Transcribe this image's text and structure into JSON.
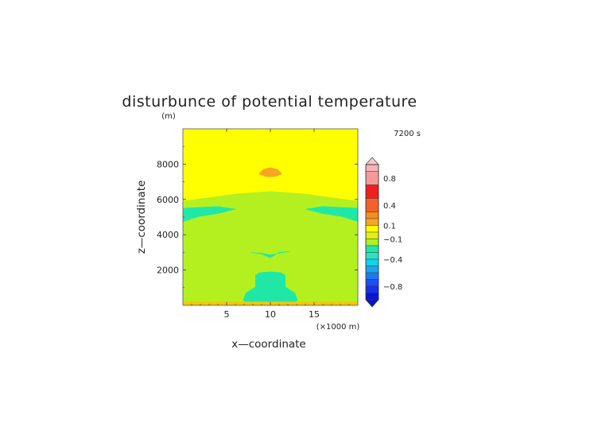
{
  "chart_data": {
    "type": "heatmap",
    "title": "disturbunce of potential temperature",
    "time_label": "7200 s",
    "xlabel": "x—coordinate",
    "ylabel": "z—coordinate",
    "x_unit": "(×1000 m)",
    "y_unit": "(m)",
    "xlim": [
      0,
      20
    ],
    "ylim": [
      0,
      10000
    ],
    "x_ticks": [
      5,
      10,
      15
    ],
    "x_tick_labels": [
      "5",
      "10",
      "15"
    ],
    "y_ticks": [
      2000,
      4000,
      6000,
      8000
    ],
    "y_tick_labels": [
      "2000",
      "4000",
      "6000",
      "8000"
    ],
    "colorbar": {
      "range": [
        -1.0,
        1.0
      ],
      "labels": [
        {
          "value": 0.8,
          "text": "0.8"
        },
        {
          "value": 0.4,
          "text": "0.4"
        },
        {
          "value": 0.1,
          "text": "0.1"
        },
        {
          "value": -0.1,
          "text": "−0.1"
        },
        {
          "value": -0.4,
          "text": "−0.4"
        },
        {
          "value": -0.8,
          "text": "−0.8"
        }
      ],
      "bands": [
        {
          "from": 0.9,
          "to": 1.0,
          "color": "#f8b4b4"
        },
        {
          "from": 0.7,
          "to": 0.9,
          "color": "#f49a9a"
        },
        {
          "from": 0.5,
          "to": 0.7,
          "color": "#ef1f1f"
        },
        {
          "from": 0.3,
          "to": 0.5,
          "color": "#f4622a"
        },
        {
          "from": 0.2,
          "to": 0.3,
          "color": "#f58c1e"
        },
        {
          "from": 0.1,
          "to": 0.2,
          "color": "#f5a623"
        },
        {
          "from": 0.0,
          "to": 0.1,
          "color": "#ffff00"
        },
        {
          "from": -0.1,
          "to": 0.0,
          "color": "#e2ef10"
        },
        {
          "from": -0.2,
          "to": -0.1,
          "color": "#b0f02a"
        },
        {
          "from": -0.3,
          "to": -0.2,
          "color": "#1fe8a6"
        },
        {
          "from": -0.4,
          "to": -0.3,
          "color": "#2fe0c8"
        },
        {
          "from": -0.5,
          "to": -0.4,
          "color": "#12d3e8"
        },
        {
          "from": -0.6,
          "to": -0.5,
          "color": "#1aa7f0"
        },
        {
          "from": -0.7,
          "to": -0.6,
          "color": "#1e78f0"
        },
        {
          "from": -0.8,
          "to": -0.7,
          "color": "#1c4cf2"
        },
        {
          "from": -0.9,
          "to": -0.8,
          "color": "#1530ee"
        },
        {
          "from": -1.0,
          "to": -0.9,
          "color": "#0b14d8"
        }
      ],
      "top_cap_color": "#f8c8c8",
      "bottom_cap_color": "#0a14c8"
    },
    "regions": [
      {
        "name": "upper-warm-layer",
        "value": 0.05,
        "color": "#ffff00",
        "polygon": [
          [
            0,
            10000
          ],
          [
            20,
            10000
          ],
          [
            20,
            5900
          ],
          [
            17,
            6100
          ],
          [
            14,
            6300
          ],
          [
            10,
            6450
          ],
          [
            6,
            6300
          ],
          [
            3,
            6100
          ],
          [
            0,
            5900
          ]
        ]
      },
      {
        "name": "lower-neutral-layer",
        "value": -0.05,
        "color": "#b4f020",
        "polygon": [
          [
            0,
            5900
          ],
          [
            3,
            6100
          ],
          [
            6,
            6300
          ],
          [
            10,
            6450
          ],
          [
            14,
            6300
          ],
          [
            17,
            6100
          ],
          [
            20,
            5900
          ],
          [
            20,
            0
          ],
          [
            0,
            0
          ]
        ]
      },
      {
        "name": "warm-blob-top",
        "value": 0.15,
        "color": "#f5a623",
        "polygon": [
          [
            8.7,
            7450
          ],
          [
            9.2,
            7700
          ],
          [
            10,
            7800
          ],
          [
            10.8,
            7700
          ],
          [
            11.3,
            7450
          ],
          [
            10.6,
            7300
          ],
          [
            10,
            7280
          ],
          [
            9.4,
            7300
          ]
        ]
      },
      {
        "name": "cool-lobe-left",
        "value": -0.25,
        "color": "#1fe8a6",
        "polygon": [
          [
            0,
            5500
          ],
          [
            2,
            5550
          ],
          [
            4,
            5600
          ],
          [
            6,
            5450
          ],
          [
            4,
            5200
          ],
          [
            2,
            5050
          ],
          [
            0,
            4750
          ]
        ]
      },
      {
        "name": "cool-lobe-right",
        "value": -0.25,
        "color": "#1fe8a6",
        "polygon": [
          [
            20,
            5500
          ],
          [
            18,
            5550
          ],
          [
            16,
            5600
          ],
          [
            14,
            5450
          ],
          [
            16,
            5200
          ],
          [
            18,
            5050
          ],
          [
            20,
            4750
          ]
        ]
      },
      {
        "name": "cool-filament",
        "value": -0.25,
        "color": "#1fe8a6",
        "polygon": [
          [
            7.8,
            3000
          ],
          [
            9,
            2950
          ],
          [
            10,
            2850
          ],
          [
            11,
            2950
          ],
          [
            12.2,
            3050
          ],
          [
            11,
            3000
          ],
          [
            10,
            2700
          ],
          [
            9,
            2900
          ]
        ]
      },
      {
        "name": "cool-plume-bottom",
        "value": -0.25,
        "color": "#1fe8a6",
        "polygon": [
          [
            8.3,
            1700
          ],
          [
            8.8,
            1850
          ],
          [
            10,
            1900
          ],
          [
            11.2,
            1850
          ],
          [
            11.7,
            1700
          ],
          [
            11.7,
            1050
          ],
          [
            12.8,
            700
          ],
          [
            13.1,
            300
          ],
          [
            12.5,
            50
          ],
          [
            10,
            0
          ],
          [
            7.5,
            50
          ],
          [
            6.9,
            300
          ],
          [
            7.2,
            700
          ],
          [
            8.3,
            1050
          ]
        ]
      },
      {
        "name": "surface-strip",
        "value": 0.05,
        "color": "#f5c70a",
        "polygon": [
          [
            0,
            200
          ],
          [
            20,
            200
          ],
          [
            20,
            0
          ],
          [
            0,
            0
          ]
        ]
      }
    ]
  }
}
